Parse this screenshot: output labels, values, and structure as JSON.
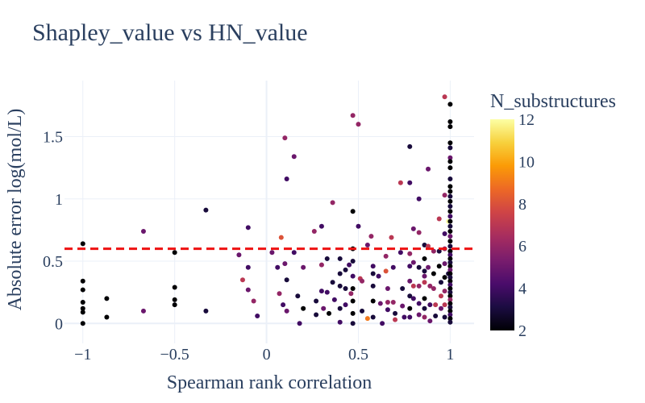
{
  "chart_data": {
    "type": "scatter",
    "title": "Shapley_value vs HN_value",
    "xlabel": "Spearman rank correlation",
    "ylabel": "Absolute error log(mol/L)",
    "xlim": [
      -1.1,
      1.13
    ],
    "ylim": [
      -0.16,
      1.95
    ],
    "x_ticks": [
      -1,
      -0.5,
      0,
      0.5,
      1
    ],
    "x_tick_labels": [
      "−1",
      "−0.5",
      "0",
      "0.5",
      "1"
    ],
    "y_ticks": [
      0,
      0.5,
      1,
      1.5
    ],
    "y_tick_labels": [
      "0",
      "0.5",
      "1",
      "1.5"
    ],
    "grid": true,
    "threshold_line": {
      "y": 0.6,
      "color": "#ee1111",
      "style": "dashed"
    },
    "colorbar": {
      "title": "N_substructures",
      "range": [
        2,
        12
      ],
      "ticks": [
        2,
        4,
        6,
        8,
        10,
        12
      ],
      "tick_labels": [
        "2",
        "4",
        "6",
        "8",
        "10",
        "12"
      ],
      "colorscale": [
        "#000004",
        "#1b0c41",
        "#4a0c6b",
        "#781c6d",
        "#a52c60",
        "#cf4446",
        "#ed6925",
        "#fb9b06",
        "#f7d13d",
        "#fcffa4"
      ]
    },
    "points": [
      [
        -1,
        0.64,
        2
      ],
      [
        -1,
        0.34,
        2
      ],
      [
        -1,
        0.27,
        2
      ],
      [
        -1,
        0.17,
        2
      ],
      [
        -1,
        0.12,
        2
      ],
      [
        -1,
        0.09,
        2
      ],
      [
        -1,
        0.0,
        2
      ],
      [
        -0.87,
        0.2,
        2
      ],
      [
        -0.87,
        0.05,
        2
      ],
      [
        -0.67,
        0.74,
        5
      ],
      [
        -0.67,
        0.1,
        5
      ],
      [
        -0.5,
        0.57,
        2
      ],
      [
        -0.5,
        0.29,
        2
      ],
      [
        -0.5,
        0.19,
        2
      ],
      [
        -0.5,
        0.15,
        2
      ],
      [
        -0.33,
        0.91,
        3
      ],
      [
        -0.33,
        0.1,
        3
      ],
      [
        -0.15,
        0.55,
        5
      ],
      [
        -0.13,
        0.35,
        7
      ],
      [
        -0.1,
        0.77,
        4
      ],
      [
        -0.1,
        0.45,
        4
      ],
      [
        -0.1,
        0.27,
        5
      ],
      [
        -0.07,
        0.18,
        6
      ],
      [
        -0.05,
        0.06,
        4
      ],
      [
        0.03,
        0.57,
        5
      ],
      [
        0.06,
        0.45,
        4
      ],
      [
        0.07,
        0.24,
        6
      ],
      [
        0.08,
        0.69,
        8
      ],
      [
        0.09,
        0.15,
        4
      ],
      [
        0.1,
        1.49,
        6
      ],
      [
        0.11,
        1.16,
        4
      ],
      [
        0.1,
        0.48,
        5
      ],
      [
        0.11,
        0.35,
        3
      ],
      [
        0.11,
        0.1,
        5
      ],
      [
        0.15,
        1.34,
        5
      ],
      [
        0.15,
        0.57,
        4
      ],
      [
        0.17,
        0.22,
        3
      ],
      [
        0.18,
        0.0,
        4
      ],
      [
        0.2,
        0.45,
        5
      ],
      [
        0.2,
        0.12,
        2
      ],
      [
        0.26,
        0.74,
        6
      ],
      [
        0.27,
        0.18,
        3
      ],
      [
        0.27,
        0.07,
        3
      ],
      [
        0.3,
        0.78,
        4
      ],
      [
        0.3,
        0.47,
        6
      ],
      [
        0.3,
        0.26,
        4
      ],
      [
        0.31,
        0.12,
        5
      ],
      [
        0.33,
        0.52,
        3
      ],
      [
        0.33,
        0.25,
        4
      ],
      [
        0.34,
        0.08,
        2
      ],
      [
        0.36,
        0.97,
        6
      ],
      [
        0.36,
        0.33,
        3
      ],
      [
        0.37,
        0.19,
        4
      ],
      [
        0.4,
        0.52,
        3
      ],
      [
        0.4,
        0.4,
        3
      ],
      [
        0.4,
        0.3,
        3
      ],
      [
        0.4,
        0.12,
        3
      ],
      [
        0.4,
        0.01,
        4
      ],
      [
        0.43,
        0.43,
        3
      ],
      [
        0.43,
        0.28,
        3
      ],
      [
        0.43,
        0.15,
        4
      ],
      [
        0.45,
        0.47,
        4
      ],
      [
        0.46,
        0.24,
        6
      ],
      [
        0.47,
        1.67,
        6
      ],
      [
        0.47,
        0.9,
        2
      ],
      [
        0.47,
        0.6,
        2
      ],
      [
        0.47,
        0.5,
        3
      ],
      [
        0.47,
        0.38,
        4
      ],
      [
        0.47,
        0.28,
        2
      ],
      [
        0.47,
        0.18,
        2
      ],
      [
        0.47,
        0.08,
        2
      ],
      [
        0.47,
        0.0,
        3
      ],
      [
        0.5,
        1.6,
        6
      ],
      [
        0.5,
        0.78,
        4
      ],
      [
        0.51,
        0.36,
        7
      ],
      [
        0.52,
        0.34,
        6
      ],
      [
        0.52,
        0.1,
        3
      ],
      [
        0.55,
        0.63,
        5
      ],
      [
        0.55,
        0.04,
        9
      ],
      [
        0.57,
        0.7,
        6
      ],
      [
        0.58,
        0.46,
        4
      ],
      [
        0.58,
        0.4,
        3
      ],
      [
        0.58,
        0.3,
        3
      ],
      [
        0.58,
        0.18,
        2
      ],
      [
        0.58,
        0.05,
        3
      ],
      [
        0.61,
        0.38,
        4
      ],
      [
        0.62,
        0.16,
        5
      ],
      [
        0.63,
        0.0,
        4
      ],
      [
        0.65,
        0.54,
        6
      ],
      [
        0.65,
        0.42,
        8
      ],
      [
        0.66,
        0.17,
        6
      ],
      [
        0.66,
        0.28,
        5
      ],
      [
        0.66,
        0.11,
        4
      ],
      [
        0.68,
        0.69,
        7
      ],
      [
        0.69,
        0.45,
        4
      ],
      [
        0.69,
        0.17,
        6
      ],
      [
        0.7,
        0.08,
        3
      ],
      [
        0.7,
        0.03,
        7
      ],
      [
        0.73,
        1.13,
        7
      ],
      [
        0.73,
        0.57,
        4
      ],
      [
        0.74,
        0.28,
        3
      ],
      [
        0.74,
        0.14,
        5
      ],
      [
        0.75,
        0.05,
        4
      ],
      [
        0.78,
        1.42,
        3
      ],
      [
        0.78,
        1.13,
        4
      ],
      [
        0.78,
        0.56,
        6
      ],
      [
        0.78,
        0.46,
        4
      ],
      [
        0.78,
        0.34,
        5
      ],
      [
        0.78,
        0.22,
        3
      ],
      [
        0.78,
        0.12,
        2
      ],
      [
        0.78,
        0.05,
        4
      ],
      [
        0.8,
        0.76,
        5
      ],
      [
        0.8,
        0.49,
        5
      ],
      [
        0.8,
        0.3,
        7
      ],
      [
        0.8,
        0.2,
        4
      ],
      [
        0.83,
        1.0,
        4
      ],
      [
        0.83,
        0.73,
        6
      ],
      [
        0.83,
        0.45,
        3
      ],
      [
        0.83,
        0.3,
        6
      ],
      [
        0.83,
        0.16,
        4
      ],
      [
        0.83,
        0.07,
        5
      ],
      [
        0.86,
        0.63,
        3
      ],
      [
        0.86,
        0.52,
        2
      ],
      [
        0.86,
        0.42,
        3
      ],
      [
        0.86,
        0.38,
        5
      ],
      [
        0.86,
        0.33,
        7
      ],
      [
        0.86,
        0.2,
        2
      ],
      [
        0.86,
        0.12,
        3
      ],
      [
        0.86,
        0.05,
        6
      ],
      [
        0.88,
        1.24,
        5
      ],
      [
        0.88,
        0.62,
        7
      ],
      [
        0.88,
        0.45,
        5
      ],
      [
        0.89,
        0.3,
        6
      ],
      [
        0.89,
        0.15,
        4
      ],
      [
        0.89,
        0.02,
        5
      ],
      [
        0.91,
        0.58,
        6
      ],
      [
        0.91,
        0.4,
        2
      ],
      [
        0.91,
        0.28,
        6
      ],
      [
        0.92,
        0.15,
        7
      ],
      [
        0.92,
        0.06,
        3
      ],
      [
        0.94,
        0.84,
        7
      ],
      [
        0.94,
        0.58,
        3
      ],
      [
        0.94,
        0.46,
        2
      ],
      [
        0.95,
        0.33,
        3
      ],
      [
        0.95,
        0.22,
        7
      ],
      [
        0.95,
        0.12,
        5
      ],
      [
        0.97,
        1.82,
        7
      ],
      [
        0.97,
        1.03,
        6
      ],
      [
        0.97,
        0.72,
        4
      ],
      [
        0.97,
        0.6,
        6
      ],
      [
        0.97,
        0.48,
        5
      ],
      [
        0.97,
        0.37,
        2
      ],
      [
        0.97,
        0.26,
        6
      ],
      [
        0.97,
        0.15,
        7
      ],
      [
        0.97,
        0.05,
        3
      ],
      [
        0.99,
        0.82,
        12
      ],
      [
        0.99,
        0.4,
        3
      ],
      [
        1,
        1.76,
        2
      ],
      [
        1,
        1.62,
        2
      ],
      [
        1,
        1.58,
        2
      ],
      [
        1,
        1.45,
        2
      ],
      [
        1,
        1.41,
        3
      ],
      [
        1,
        1.33,
        5
      ],
      [
        1,
        1.3,
        2
      ],
      [
        1,
        1.25,
        2
      ],
      [
        1,
        1.16,
        3
      ],
      [
        1,
        1.1,
        2
      ],
      [
        1,
        1.06,
        2
      ],
      [
        1,
        1.02,
        3
      ],
      [
        1,
        0.98,
        2
      ],
      [
        1,
        0.94,
        3
      ],
      [
        1,
        0.9,
        2
      ],
      [
        1,
        0.86,
        4
      ],
      [
        1,
        0.82,
        2
      ],
      [
        1,
        0.78,
        3
      ],
      [
        1,
        0.74,
        2
      ],
      [
        1,
        0.7,
        5
      ],
      [
        1,
        0.66,
        2
      ],
      [
        1,
        0.62,
        3
      ],
      [
        1,
        0.58,
        2
      ],
      [
        1,
        0.55,
        4
      ],
      [
        1,
        0.52,
        2
      ],
      [
        1,
        0.49,
        3
      ],
      [
        1,
        0.46,
        2
      ],
      [
        1,
        0.43,
        5
      ],
      [
        1,
        0.4,
        2
      ],
      [
        1,
        0.37,
        3
      ],
      [
        1,
        0.34,
        2
      ],
      [
        1,
        0.31,
        4
      ],
      [
        1,
        0.28,
        2
      ],
      [
        1,
        0.25,
        3
      ],
      [
        1,
        0.22,
        2
      ],
      [
        1,
        0.19,
        6
      ],
      [
        1,
        0.16,
        2
      ],
      [
        1,
        0.13,
        3
      ],
      [
        1,
        0.1,
        2
      ],
      [
        1,
        0.07,
        4
      ],
      [
        1,
        0.04,
        2
      ],
      [
        1,
        0.01,
        3
      ]
    ]
  }
}
